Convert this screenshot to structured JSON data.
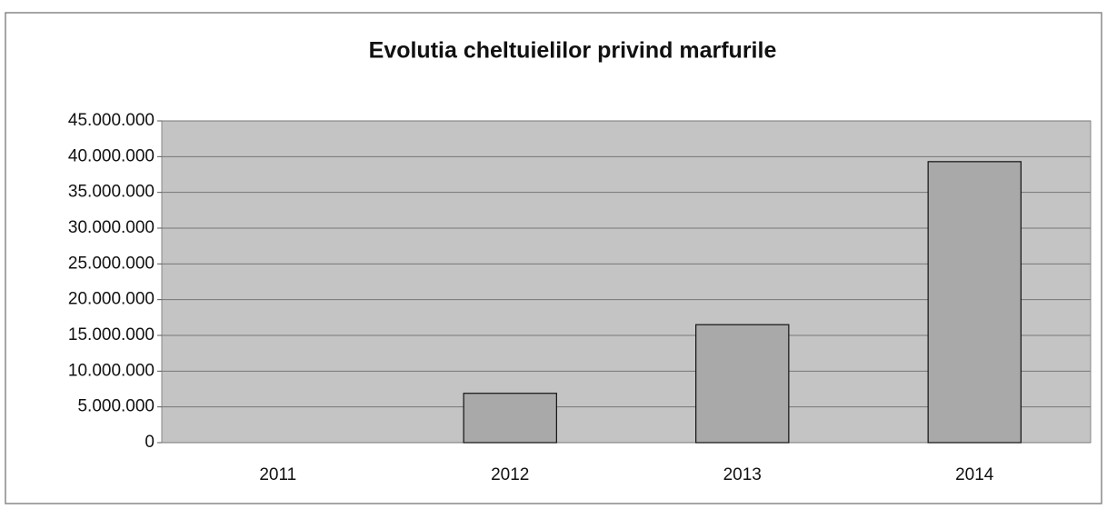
{
  "chart_data": {
    "type": "bar",
    "title": "Evolutia cheltuielilor privind marfurile",
    "categories": [
      "2011",
      "2012",
      "2013",
      "2014"
    ],
    "values": [
      0,
      6900000,
      16500000,
      39300000
    ],
    "color": "#a9a9a9",
    "ylim": [
      0,
      45000000
    ],
    "yticks": [
      {
        "value": 0,
        "label": "0"
      },
      {
        "value": 5000000,
        "label": "5.000.000"
      },
      {
        "value": 10000000,
        "label": "10.000.000"
      },
      {
        "value": 15000000,
        "label": "15.000.000"
      },
      {
        "value": 20000000,
        "label": "20.000.000"
      },
      {
        "value": 25000000,
        "label": "25.000.000"
      },
      {
        "value": 30000000,
        "label": "30.000.000"
      },
      {
        "value": 35000000,
        "label": "35.000.000"
      },
      {
        "value": 40000000,
        "label": "40.000.000"
      },
      {
        "value": 45000000,
        "label": "45.000.000"
      }
    ],
    "grid": true
  }
}
